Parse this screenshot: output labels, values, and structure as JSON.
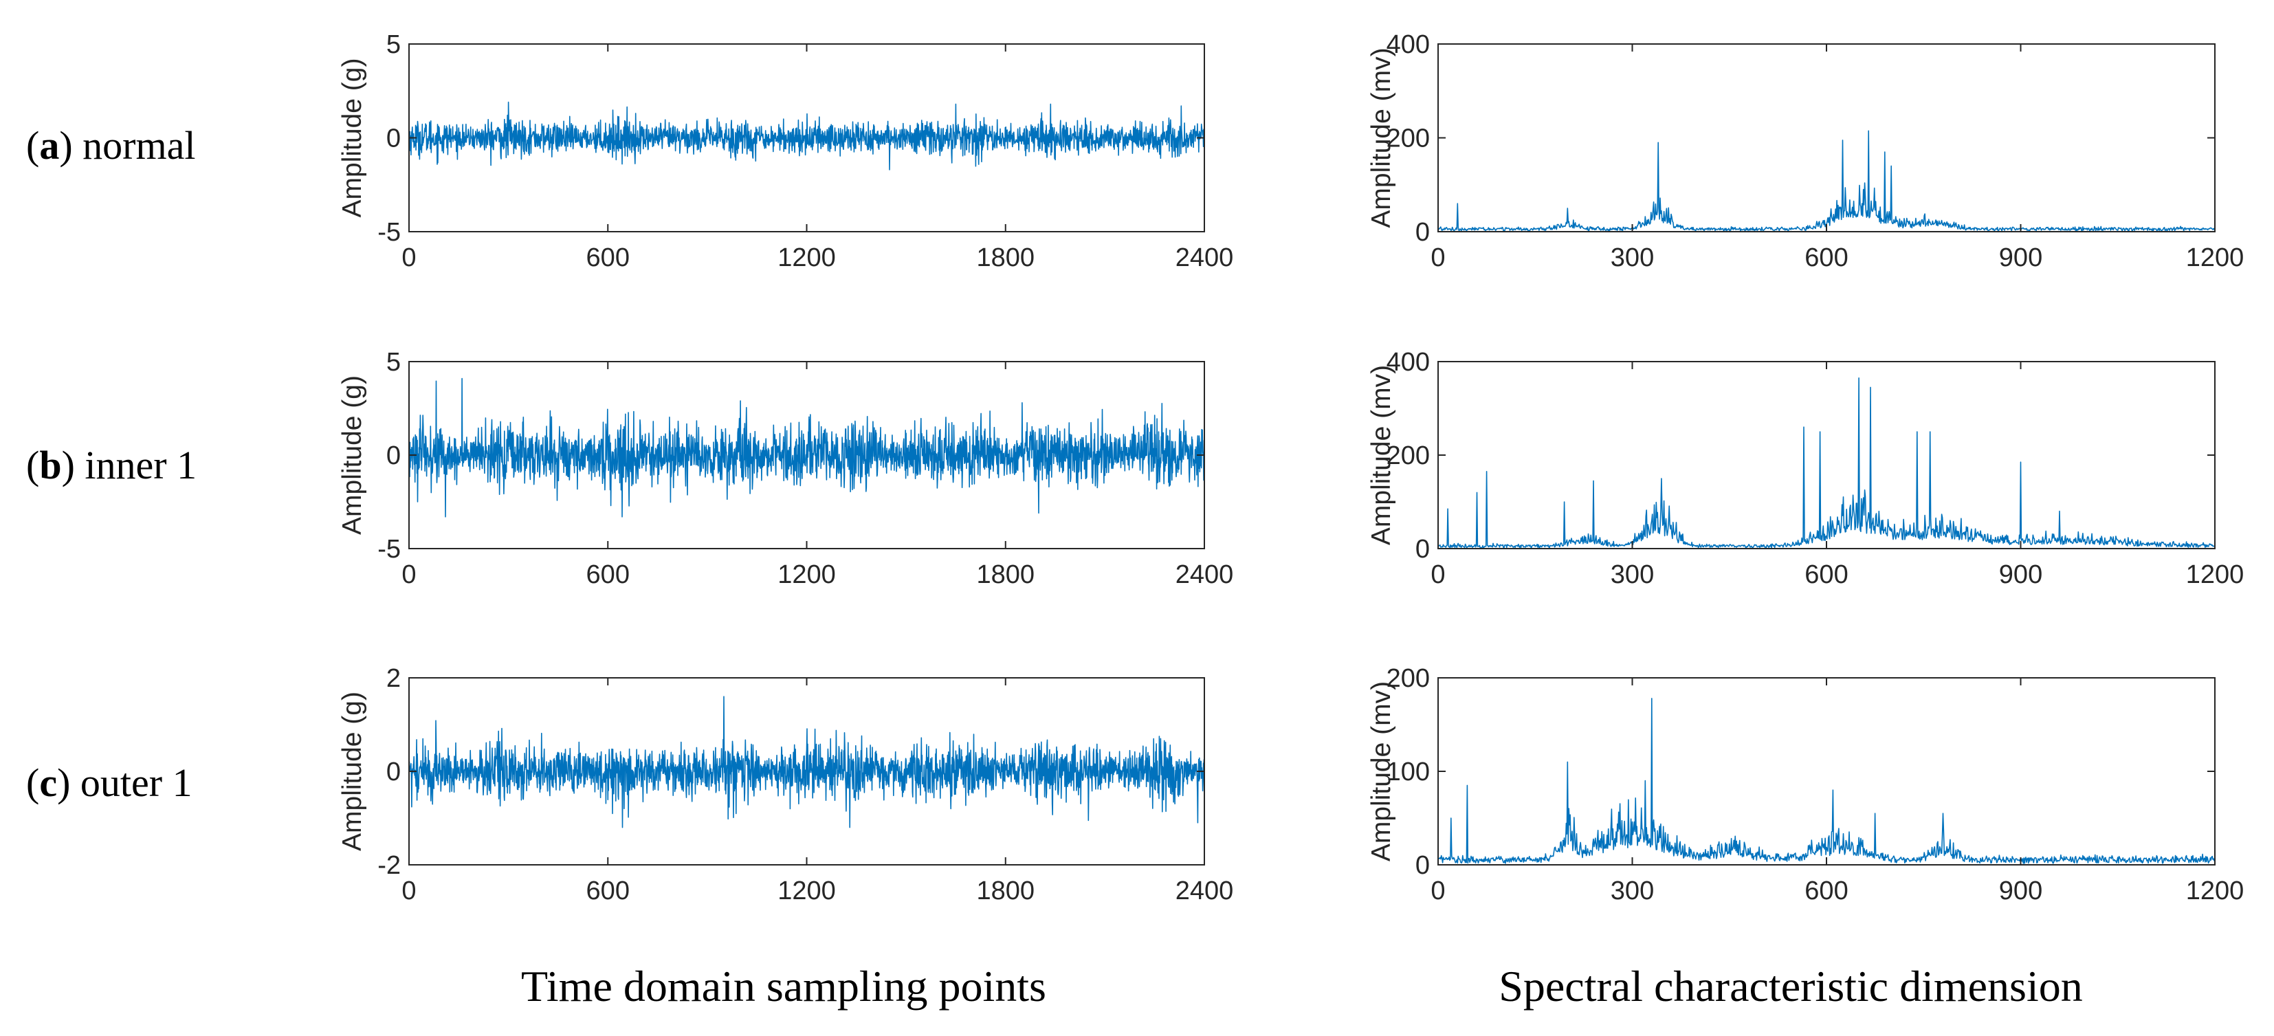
{
  "figure": {
    "column_labels": [
      "Time domain sampling points",
      "Spectral characteristic dimension"
    ],
    "rows": [
      {
        "letter": "a",
        "name": "normal"
      },
      {
        "letter": "b",
        "name": "inner 1"
      },
      {
        "letter": "c",
        "name": "outer 1"
      }
    ],
    "line_color": "#0072BD"
  },
  "chart_data": [
    {
      "id": "a-time",
      "type": "line",
      "row": "a",
      "column": "time",
      "xlabel": "",
      "ylabel": "Amplitude (g)",
      "xlim": [
        0,
        2400
      ],
      "ylim": [
        -5,
        5
      ],
      "xticks": [
        0,
        600,
        1200,
        1800,
        2400
      ],
      "yticks": [
        -5,
        0,
        5
      ],
      "signal": {
        "n_points": 2400,
        "amplitude_g": 0.5,
        "min": -2,
        "max": 2
      },
      "peaks": [
        {
          "x": 300,
          "y": 1.9
        },
        {
          "x": 1450,
          "y": -1.7
        },
        {
          "x": 1650,
          "y": 1.8
        },
        {
          "x": 2330,
          "y": 1.7
        }
      ]
    },
    {
      "id": "a-spec",
      "type": "line",
      "row": "a",
      "column": "spectrum",
      "xlabel": "",
      "ylabel": "Amplitude (mv)",
      "xlim": [
        0,
        1200
      ],
      "ylim": [
        0,
        400
      ],
      "xticks": [
        0,
        300,
        600,
        900,
        1200
      ],
      "yticks": [
        0,
        200,
        400
      ],
      "envelope": [
        {
          "center": 340,
          "height": 45,
          "width": 25
        },
        {
          "center": 650,
          "height": 80,
          "width": 45
        },
        {
          "center": 760,
          "height": 25,
          "width": 40
        },
        {
          "center": 200,
          "height": 15,
          "width": 20
        }
      ],
      "peaks": [
        {
          "x": 30,
          "y": 60
        },
        {
          "x": 200,
          "y": 50
        },
        {
          "x": 340,
          "y": 190
        },
        {
          "x": 625,
          "y": 195
        },
        {
          "x": 665,
          "y": 215
        },
        {
          "x": 690,
          "y": 170
        },
        {
          "x": 700,
          "y": 140
        }
      ]
    },
    {
      "id": "b-time",
      "type": "line",
      "row": "b",
      "column": "time",
      "xlabel": "",
      "ylabel": "Amplitude (g)",
      "xlim": [
        0,
        2400
      ],
      "ylim": [
        -5,
        5
      ],
      "xticks": [
        0,
        600,
        1200,
        1800,
        2400
      ],
      "yticks": [
        -5,
        0,
        5
      ],
      "signal": {
        "n_points": 2400,
        "amplitude_g": 0.9,
        "min": -3.3,
        "max": 4.1
      },
      "peaks": [
        {
          "x": 160,
          "y": 4.1
        },
        {
          "x": 110,
          "y": -3.3
        },
        {
          "x": 1000,
          "y": 2.9
        },
        {
          "x": 1900,
          "y": -3.1
        },
        {
          "x": 1850,
          "y": 2.8
        }
      ]
    },
    {
      "id": "b-spec",
      "type": "line",
      "row": "b",
      "column": "spectrum",
      "xlabel": "",
      "ylabel": "Amplitude (mv)",
      "xlim": [
        0,
        1200
      ],
      "ylim": [
        0,
        400
      ],
      "xticks": [
        0,
        300,
        600,
        900,
        1200
      ],
      "yticks": [
        0,
        200,
        400
      ],
      "envelope": [
        {
          "center": 340,
          "height": 80,
          "width": 30
        },
        {
          "center": 650,
          "height": 90,
          "width": 60
        },
        {
          "center": 780,
          "height": 45,
          "width": 50
        },
        {
          "center": 230,
          "height": 25,
          "width": 30
        },
        {
          "center": 950,
          "height": 20,
          "width": 150
        }
      ],
      "peaks": [
        {
          "x": 15,
          "y": 85
        },
        {
          "x": 60,
          "y": 120
        },
        {
          "x": 75,
          "y": 165
        },
        {
          "x": 195,
          "y": 100
        },
        {
          "x": 240,
          "y": 145
        },
        {
          "x": 345,
          "y": 150
        },
        {
          "x": 565,
          "y": 260
        },
        {
          "x": 590,
          "y": 250
        },
        {
          "x": 650,
          "y": 365
        },
        {
          "x": 668,
          "y": 345
        },
        {
          "x": 740,
          "y": 250
        },
        {
          "x": 760,
          "y": 250
        },
        {
          "x": 900,
          "y": 185
        },
        {
          "x": 960,
          "y": 80
        }
      ]
    },
    {
      "id": "c-time",
      "type": "line",
      "row": "c",
      "column": "time",
      "xlabel": "",
      "ylabel": "Amplitude (g)",
      "xlim": [
        0,
        2400
      ],
      "ylim": [
        -2,
        2
      ],
      "xticks": [
        0,
        600,
        1200,
        1800,
        2400
      ],
      "yticks": [
        -2,
        0,
        2
      ],
      "signal": {
        "n_points": 2400,
        "amplitude_g": 0.32,
        "min": -1.2,
        "max": 1.6
      },
      "peaks": [
        {
          "x": 950,
          "y": 1.6
        },
        {
          "x": 1330,
          "y": -1.2
        },
        {
          "x": 2050,
          "y": -1.05
        },
        {
          "x": 2380,
          "y": -1.1
        }
      ]
    },
    {
      "id": "c-spec",
      "type": "line",
      "row": "c",
      "column": "spectrum",
      "xlabel": "",
      "ylabel": "Amplitude (mv)",
      "xlim": [
        0,
        1200
      ],
      "ylim": [
        0,
        200
      ],
      "xticks": [
        0,
        300,
        600,
        900,
        1200
      ],
      "yticks": [
        0,
        100,
        200
      ],
      "envelope": [
        {
          "center": 300,
          "height": 45,
          "width": 70
        },
        {
          "center": 200,
          "height": 35,
          "width": 15
        },
        {
          "center": 620,
          "height": 25,
          "width": 50
        },
        {
          "center": 460,
          "height": 15,
          "width": 40
        },
        {
          "center": 780,
          "height": 20,
          "width": 25
        }
      ],
      "peaks": [
        {
          "x": 20,
          "y": 50
        },
        {
          "x": 45,
          "y": 85
        },
        {
          "x": 200,
          "y": 110
        },
        {
          "x": 330,
          "y": 178
        },
        {
          "x": 320,
          "y": 90
        },
        {
          "x": 610,
          "y": 80
        },
        {
          "x": 675,
          "y": 55
        },
        {
          "x": 780,
          "y": 55
        }
      ]
    }
  ]
}
